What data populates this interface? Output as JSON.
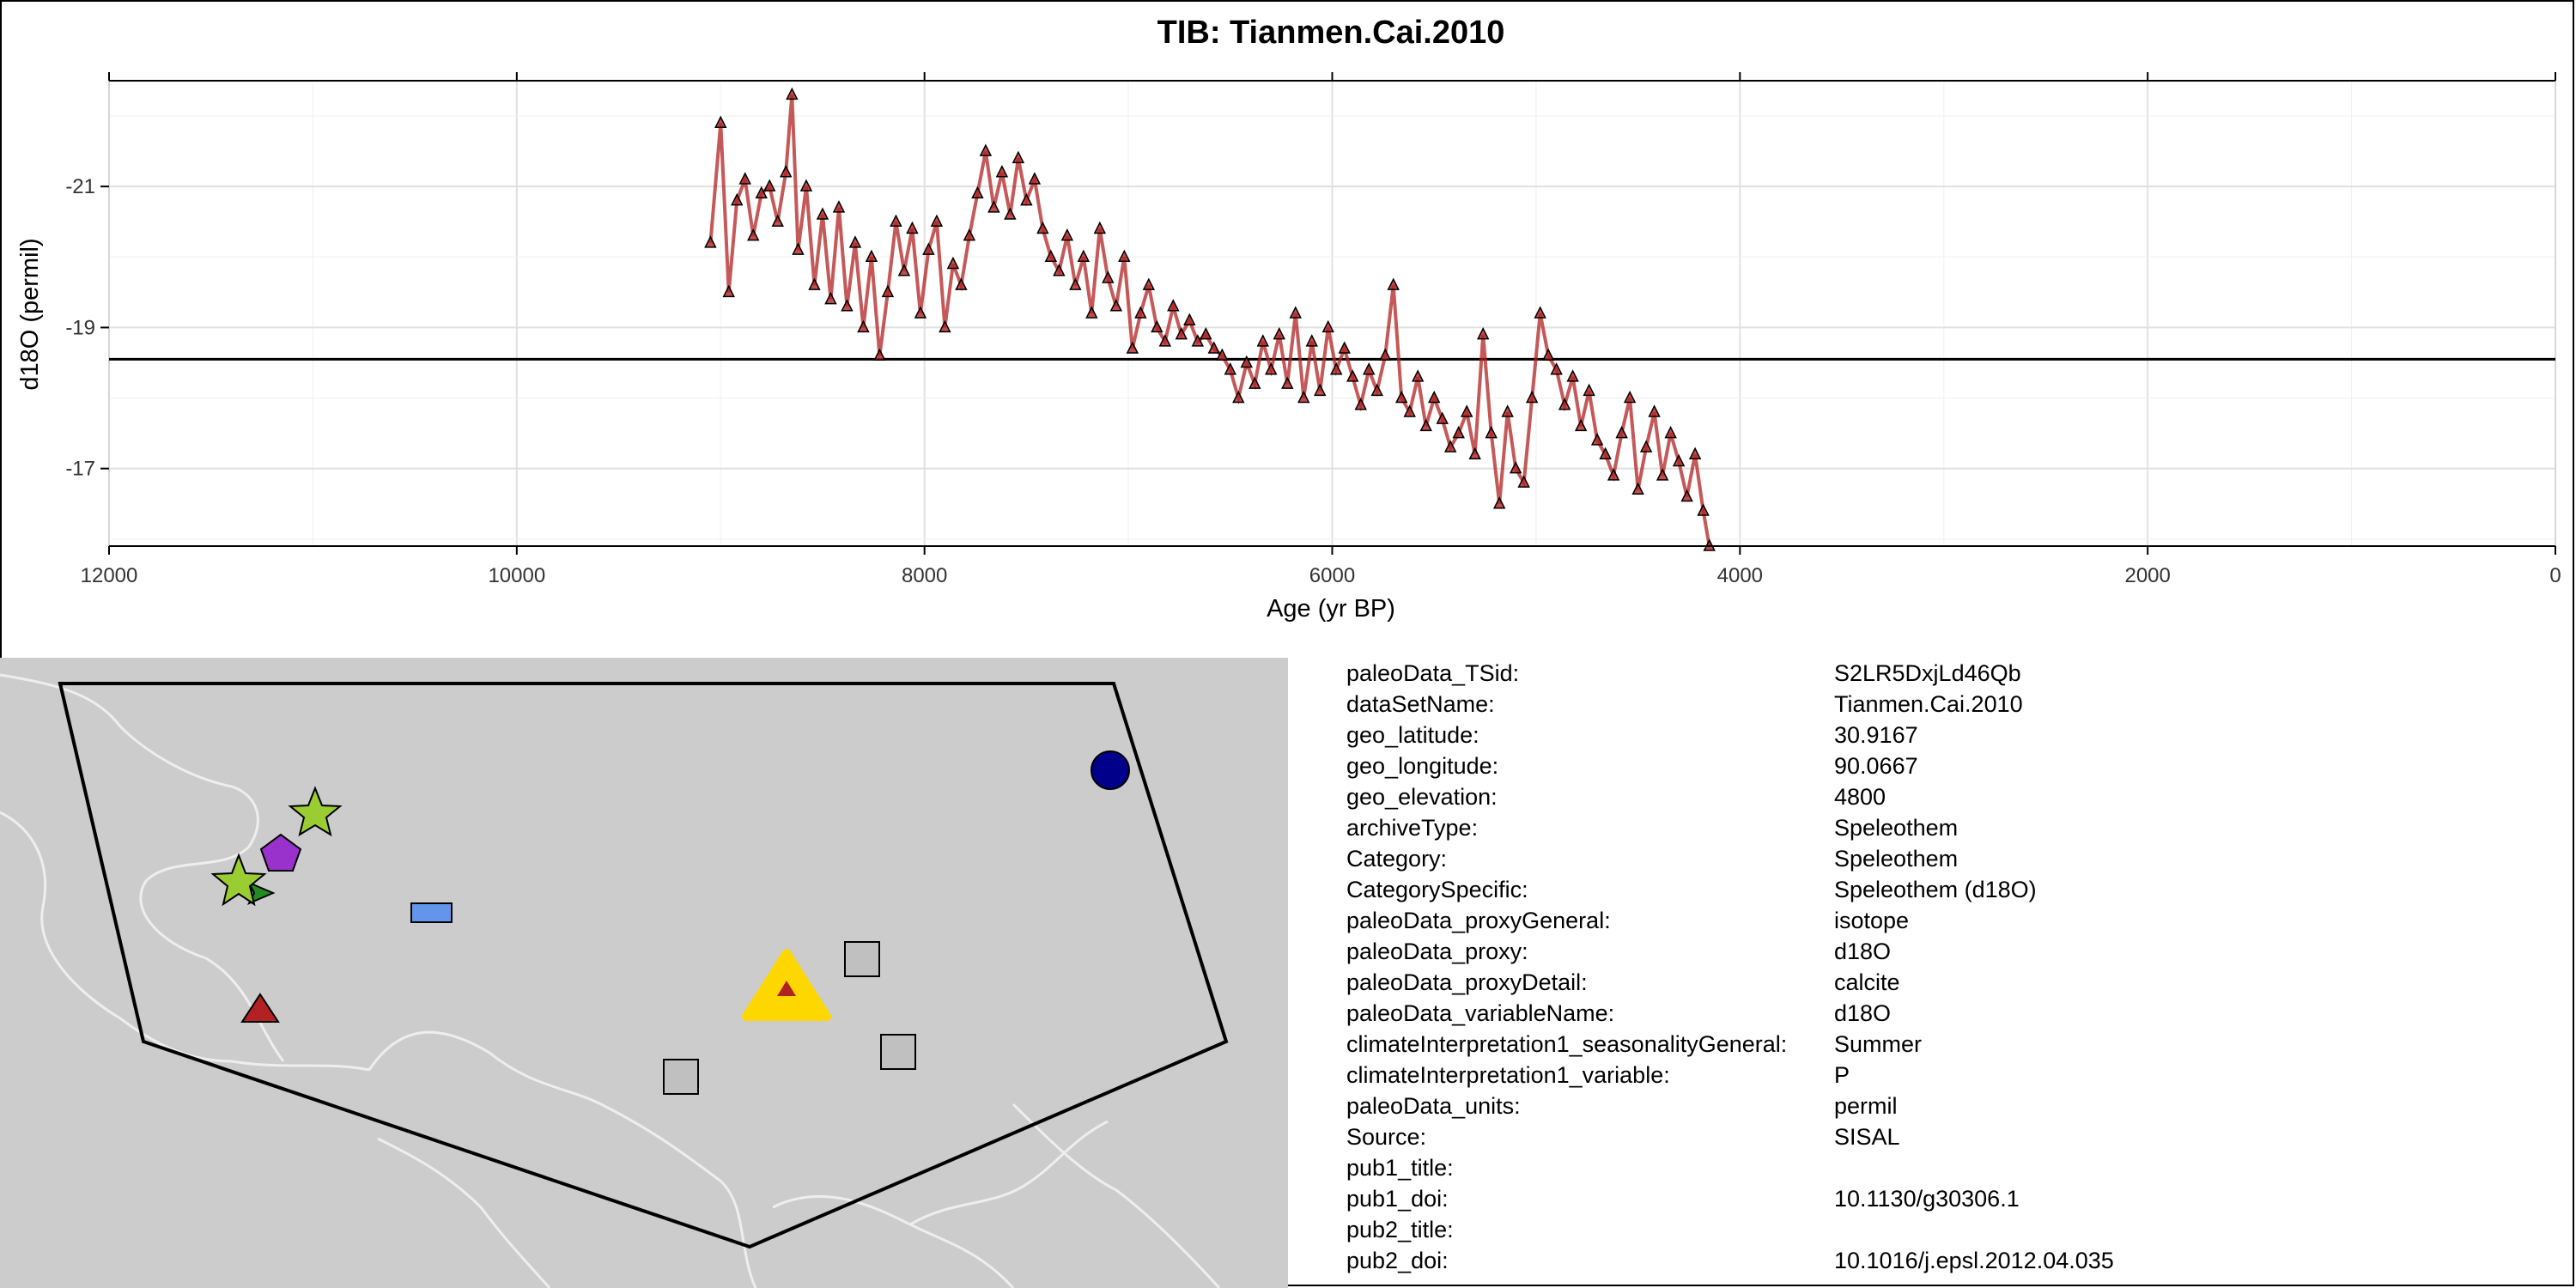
{
  "chart_data": {
    "type": "line",
    "title": "TIB: Tianmen.Cai.2010",
    "xlabel": "Age (yr BP)",
    "ylabel": "d18O (permil)",
    "xlim": [
      12000,
      0
    ],
    "ylim": [
      -15.9,
      -22.5
    ],
    "y_reversed": true,
    "grid": true,
    "x_ticks": [
      12000,
      10000,
      8000,
      6000,
      4000,
      2000,
      0
    ],
    "x_tick_labels": [
      "12000",
      "10000",
      "8000",
      "6000",
      "4000",
      "2000",
      "0"
    ],
    "y_ticks": [
      -21,
      -19,
      -17
    ],
    "y_tick_labels": [
      "-21",
      "-19",
      "-17"
    ],
    "reference_line_y": -18.55,
    "series": [
      {
        "color": "#b22222",
        "marker": "triangle",
        "x": [
          9050,
          9000,
          8960,
          8920,
          8880,
          8840,
          8800,
          8760,
          8720,
          8680,
          8650,
          8620,
          8580,
          8540,
          8500,
          8460,
          8420,
          8380,
          8340,
          8300,
          8260,
          8220,
          8180,
          8140,
          8100,
          8060,
          8020,
          7980,
          7940,
          7900,
          7860,
          7820,
          7780,
          7740,
          7700,
          7660,
          7620,
          7580,
          7540,
          7500,
          7460,
          7420,
          7380,
          7340,
          7300,
          7260,
          7220,
          7180,
          7140,
          7100,
          7060,
          7020,
          6980,
          6940,
          6900,
          6860,
          6820,
          6780,
          6740,
          6700,
          6660,
          6620,
          6580,
          6540,
          6500,
          6460,
          6420,
          6380,
          6340,
          6300,
          6260,
          6220,
          6180,
          6140,
          6100,
          6060,
          6020,
          5980,
          5940,
          5900,
          5860,
          5820,
          5780,
          5740,
          5700,
          5660,
          5620,
          5580,
          5540,
          5500,
          5460,
          5420,
          5380,
          5340,
          5300,
          5260,
          5220,
          5180,
          5140,
          5100,
          5060,
          5020,
          4980,
          4940,
          4900,
          4860,
          4820,
          4780,
          4740,
          4700,
          4660,
          4620,
          4580,
          4540,
          4500,
          4460,
          4420,
          4380,
          4340,
          4300,
          4260,
          4220,
          4180,
          4150
        ],
        "y": [
          -20.2,
          -21.9,
          -19.5,
          -20.8,
          -21.1,
          -20.3,
          -20.9,
          -21.0,
          -20.5,
          -21.2,
          -22.3,
          -20.1,
          -21.0,
          -19.6,
          -20.6,
          -19.4,
          -20.7,
          -19.3,
          -20.2,
          -19.0,
          -20.0,
          -18.6,
          -19.5,
          -20.5,
          -19.8,
          -20.4,
          -19.2,
          -20.1,
          -20.5,
          -19.0,
          -19.9,
          -19.6,
          -20.3,
          -20.9,
          -21.5,
          -20.7,
          -21.2,
          -20.6,
          -21.4,
          -20.8,
          -21.1,
          -20.4,
          -20.0,
          -19.8,
          -20.3,
          -19.6,
          -20.0,
          -19.2,
          -20.4,
          -19.7,
          -19.3,
          -20.0,
          -18.7,
          -19.2,
          -19.6,
          -19.0,
          -18.8,
          -19.3,
          -18.9,
          -19.1,
          -18.8,
          -18.9,
          -18.7,
          -18.6,
          -18.4,
          -18.0,
          -18.5,
          -18.2,
          -18.8,
          -18.4,
          -18.9,
          -18.2,
          -19.2,
          -18.0,
          -18.8,
          -18.1,
          -19.0,
          -18.4,
          -18.7,
          -18.3,
          -17.9,
          -18.4,
          -18.1,
          -18.6,
          -19.6,
          -18.0,
          -17.8,
          -18.3,
          -17.6,
          -18.0,
          -17.7,
          -17.3,
          -17.5,
          -17.8,
          -17.2,
          -18.9,
          -17.5,
          -16.5,
          -17.8,
          -17.0,
          -16.8,
          -18.0,
          -19.2,
          -18.6,
          -18.4,
          -17.9,
          -18.3,
          -17.6,
          -18.1,
          -17.4,
          -17.2,
          -16.9,
          -17.5,
          -18.0,
          -16.7,
          -17.3,
          -17.8,
          -16.9,
          -17.5,
          -17.1,
          -16.6,
          -17.2,
          -16.4,
          -15.9
        ]
      }
    ]
  },
  "metadata_panel": {
    "rows": [
      {
        "key": "paleoData_TSid:",
        "value": "S2LR5DxjLd46Qb"
      },
      {
        "key": "dataSetName:",
        "value": "Tianmen.Cai.2010"
      },
      {
        "key": "geo_latitude:",
        "value": "30.9167"
      },
      {
        "key": "geo_longitude:",
        "value": "90.0667"
      },
      {
        "key": "geo_elevation:",
        "value": "4800"
      },
      {
        "key": "archiveType:",
        "value": "Speleothem"
      },
      {
        "key": "Category:",
        "value": "Speleothem"
      },
      {
        "key": "CategorySpecific:",
        "value": "Speleothem (d18O)"
      },
      {
        "key": "paleoData_proxyGeneral:",
        "value": "isotope"
      },
      {
        "key": "paleoData_proxy:",
        "value": "d18O"
      },
      {
        "key": "paleoData_proxyDetail:",
        "value": "calcite"
      },
      {
        "key": "paleoData_variableName:",
        "value": "d18O"
      },
      {
        "key": "climateInterpretation1_seasonalityGeneral:",
        "value": "Summer"
      },
      {
        "key": "climateInterpretation1_variable:",
        "value": "P"
      },
      {
        "key": "paleoData_units:",
        "value": "permil"
      },
      {
        "key": "Source:",
        "value": "SISAL"
      },
      {
        "key": "pub1_title:",
        "value": ""
      },
      {
        "key": "pub1_doi:",
        "value": "10.1130/g30306.1"
      },
      {
        "key": "pub2_title:",
        "value": ""
      },
      {
        "key": "pub2_doi:",
        "value": "10.1016/j.epsl.2012.04.035"
      }
    ]
  },
  "map": {
    "background_color": "#cccccc",
    "border_color": "#eeeeee",
    "markers": [
      {
        "shape": "circle",
        "fill": "#00008b"
      },
      {
        "shape": "star",
        "fill": "#9acd32"
      },
      {
        "shape": "pentagon",
        "fill": "#9932cc"
      },
      {
        "shape": "star",
        "fill": "#9acd32"
      },
      {
        "shape": "arrow",
        "fill": "#228b22"
      },
      {
        "shape": "rectangle",
        "fill": "#6495ed"
      },
      {
        "shape": "triangle",
        "fill": "#b22222"
      },
      {
        "shape": "square",
        "fill": "#c0c0c0"
      },
      {
        "shape": "square",
        "fill": "#c0c0c0"
      },
      {
        "shape": "square",
        "fill": "#c0c0c0"
      },
      {
        "shape": "highlight-triangle",
        "fill": "#ffd700",
        "inner_fill": "#b22222"
      }
    ]
  }
}
